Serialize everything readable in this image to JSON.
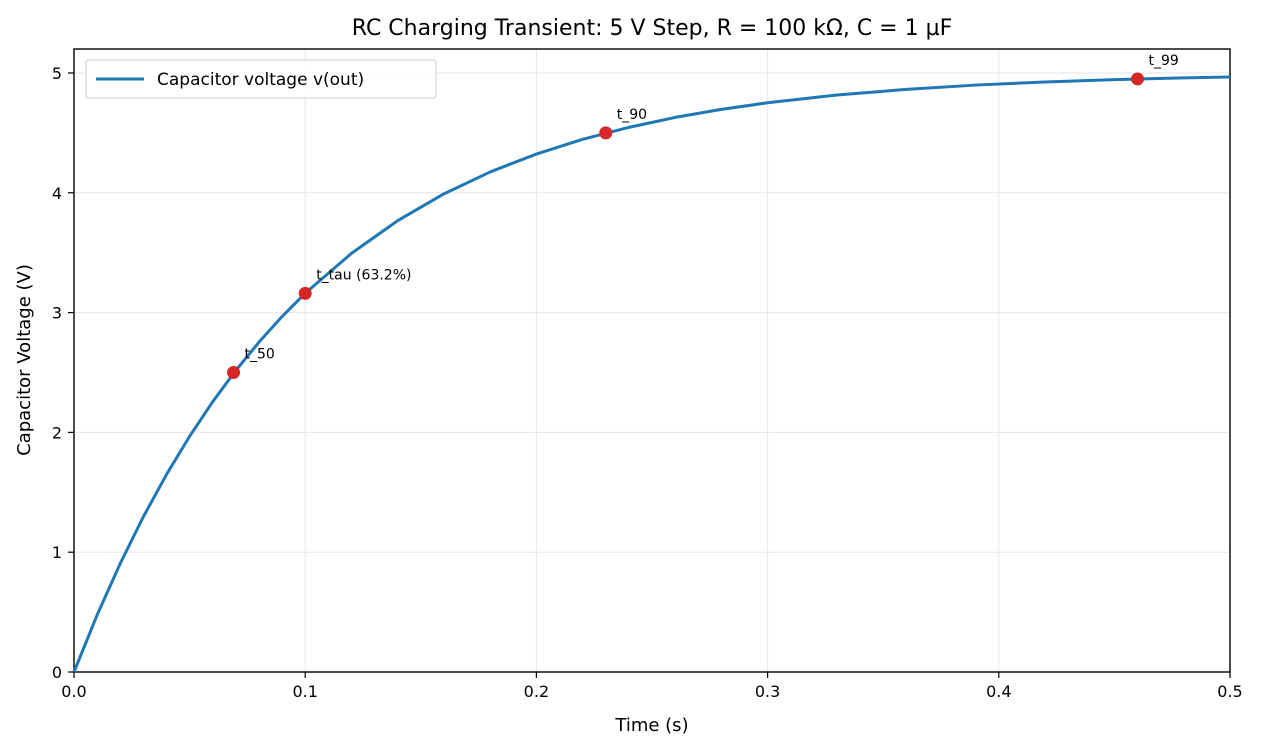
{
  "chart_data": {
    "type": "line",
    "title": "RC Charging Transient: 5 V Step, R = 100 kΩ, C = 1 µF",
    "xlabel": "Time (s)",
    "ylabel": "Capacitor Voltage (V)",
    "xlim": [
      0.0,
      0.5
    ],
    "ylim": [
      0,
      5.2
    ],
    "x_ticks": [
      0.0,
      0.1,
      0.2,
      0.3,
      0.4,
      0.5
    ],
    "x_tick_labels": [
      "0.0",
      "0.1",
      "0.2",
      "0.3",
      "0.4",
      "0.5"
    ],
    "y_ticks": [
      0,
      1,
      2,
      3,
      4,
      5
    ],
    "y_tick_labels": [
      "0",
      "1",
      "2",
      "3",
      "4",
      "5"
    ],
    "grid": true,
    "legend_position": "top-left",
    "series": [
      {
        "name": "Capacitor voltage v(out)",
        "color": "#1f77b4",
        "x": [
          0.0,
          0.01,
          0.02,
          0.03,
          0.04,
          0.05,
          0.06,
          0.07,
          0.08,
          0.09,
          0.1,
          0.12,
          0.14,
          0.16,
          0.18,
          0.2,
          0.22,
          0.24,
          0.26,
          0.28,
          0.3,
          0.33,
          0.36,
          0.39,
          0.42,
          0.45,
          0.48,
          0.5
        ],
        "y": [
          0.0,
          0.476,
          0.906,
          1.296,
          1.648,
          1.967,
          2.256,
          2.517,
          2.753,
          2.967,
          3.161,
          3.494,
          3.767,
          3.991,
          4.174,
          4.323,
          4.446,
          4.546,
          4.629,
          4.696,
          4.751,
          4.816,
          4.863,
          4.899,
          4.925,
          4.944,
          4.959,
          4.966
        ]
      }
    ],
    "markers": {
      "color": "#d62728",
      "points": [
        {
          "label": "t_50",
          "x": 0.069,
          "y": 2.5
        },
        {
          "label": "t_tau (63.2%)",
          "x": 0.1,
          "y": 3.16
        },
        {
          "label": "t_90",
          "x": 0.23,
          "y": 4.5
        },
        {
          "label": "t_99",
          "x": 0.46,
          "y": 4.95
        }
      ]
    }
  }
}
